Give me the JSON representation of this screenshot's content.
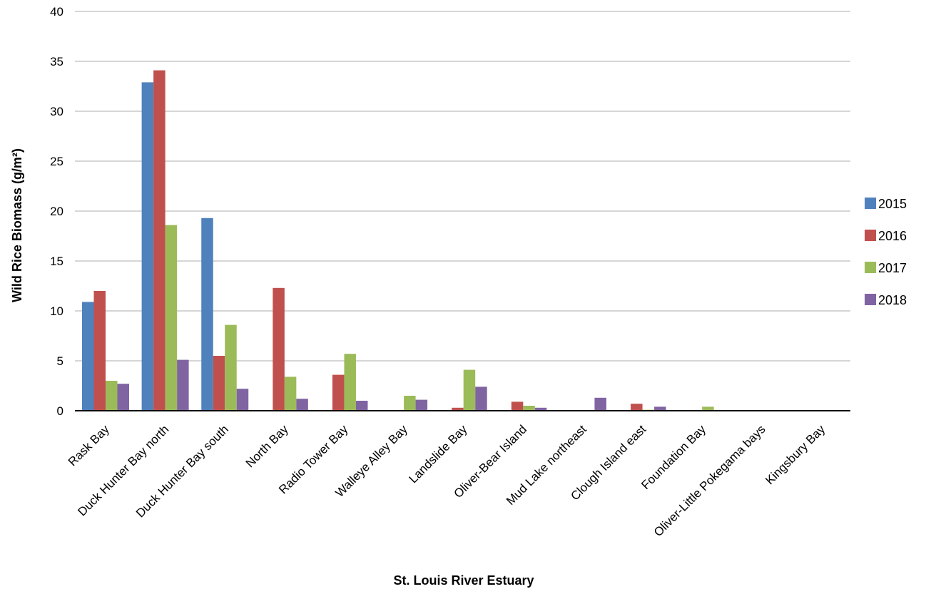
{
  "chart_data": {
    "type": "bar",
    "title": "",
    "xlabel": "St. Louis River Estuary",
    "ylabel": "Wild Rice Biomass (g/m²)",
    "ylim": [
      0,
      40
    ],
    "yticks": [
      0,
      5,
      10,
      15,
      20,
      25,
      30,
      35,
      40
    ],
    "grid": true,
    "legend_position": "right",
    "categories": [
      "Rask Bay",
      "Duck Hunter Bay north",
      "Duck Hunter Bay south",
      "North Bay",
      "Radio Tower Bay",
      "Walleye Alley Bay",
      "Landslide Bay",
      "Oliver-Bear Island",
      "Mud Lake northeast",
      "Clough Island east",
      "Foundation Bay",
      "Oliver-Little Pokegama bays",
      "Kingsbury Bay"
    ],
    "series": [
      {
        "name": "2015",
        "color": "#4F81BD",
        "values": [
          10.9,
          32.9,
          19.3,
          0,
          0,
          0,
          0,
          0,
          0,
          0,
          0,
          0,
          0
        ]
      },
      {
        "name": "2016",
        "color": "#C0504D",
        "values": [
          12.0,
          34.1,
          5.5,
          12.3,
          3.6,
          0,
          0.3,
          0.9,
          0,
          0.7,
          0,
          0,
          0
        ]
      },
      {
        "name": "2017",
        "color": "#9BBB59",
        "values": [
          3.0,
          18.6,
          8.6,
          3.4,
          5.7,
          1.5,
          4.1,
          0.5,
          0,
          0.1,
          0.4,
          0,
          0
        ]
      },
      {
        "name": "2018",
        "color": "#8064A2",
        "values": [
          2.7,
          5.1,
          2.2,
          1.2,
          1.0,
          1.1,
          2.4,
          0.3,
          1.3,
          0.4,
          0,
          0,
          0
        ]
      }
    ]
  }
}
